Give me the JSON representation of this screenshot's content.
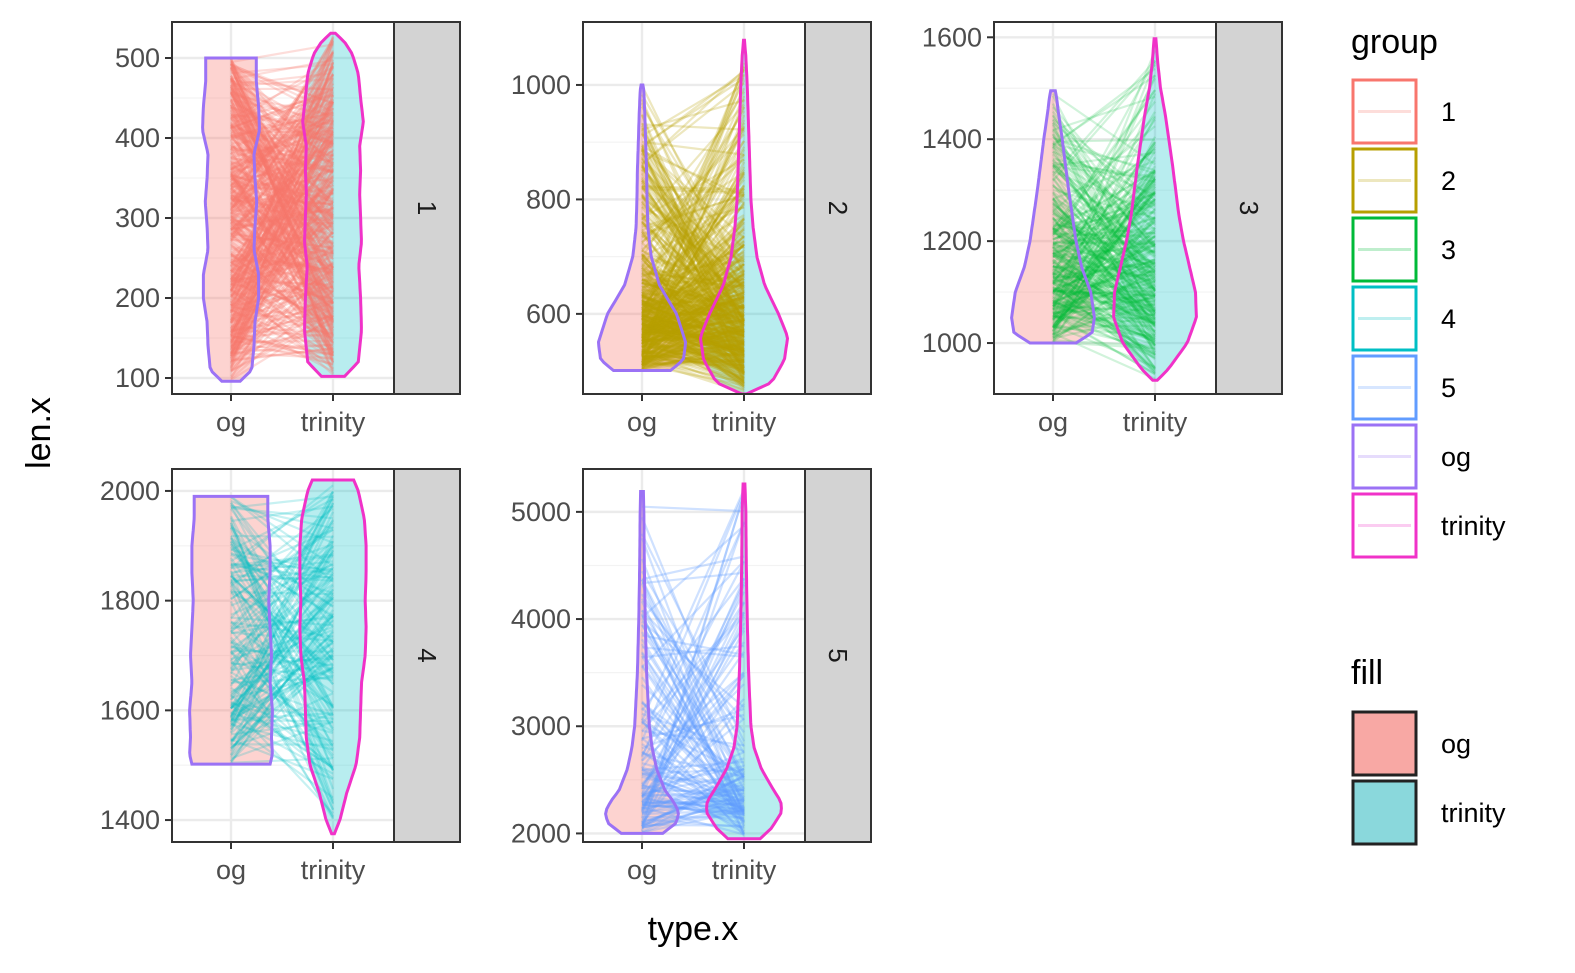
{
  "chart_data": {
    "type": "violin",
    "xlabel": "type.x",
    "ylabel": "len.x",
    "x_categories": [
      "og",
      "trinity"
    ],
    "panels": [
      {
        "facet": "1",
        "ylim": [
          80,
          545
        ],
        "yticks": [
          100,
          200,
          300,
          400,
          500
        ],
        "line_color": "#F8766D",
        "line_count": 500,
        "line_opacity": 0.25,
        "og": {
          "min": 96,
          "max": 500,
          "density": [
            [
              96,
              0.2
            ],
            [
              110,
              0.45
            ],
            [
              140,
              0.5
            ],
            [
              170,
              0.52
            ],
            [
              200,
              0.6
            ],
            [
              230,
              0.6
            ],
            [
              260,
              0.5
            ],
            [
              290,
              0.52
            ],
            [
              320,
              0.56
            ],
            [
              350,
              0.52
            ],
            [
              380,
              0.5
            ],
            [
              410,
              0.62
            ],
            [
              440,
              0.6
            ],
            [
              470,
              0.55
            ],
            [
              490,
              0.55
            ],
            [
              500,
              0.55
            ]
          ]
        },
        "trinity": {
          "min": 102,
          "max": 531,
          "density": [
            [
              102,
              0.25
            ],
            [
              120,
              0.55
            ],
            [
              160,
              0.62
            ],
            [
              200,
              0.6
            ],
            [
              240,
              0.56
            ],
            [
              270,
              0.62
            ],
            [
              300,
              0.6
            ],
            [
              330,
              0.58
            ],
            [
              360,
              0.6
            ],
            [
              390,
              0.58
            ],
            [
              420,
              0.66
            ],
            [
              450,
              0.6
            ],
            [
              480,
              0.55
            ],
            [
              505,
              0.42
            ],
            [
              520,
              0.25
            ],
            [
              531,
              0.05
            ]
          ]
        }
      },
      {
        "facet": "2",
        "ylim": [
          460,
          1110
        ],
        "yticks": [
          600,
          800,
          1000
        ],
        "line_color": "#B79F00",
        "line_count": 500,
        "line_opacity": 0.25,
        "og": {
          "min": 501,
          "max": 1000,
          "density": [
            [
              501,
              0.62
            ],
            [
              520,
              0.9
            ],
            [
              550,
              0.95
            ],
            [
              600,
              0.75
            ],
            [
              650,
              0.38
            ],
            [
              700,
              0.2
            ],
            [
              750,
              0.13
            ],
            [
              800,
              0.11
            ],
            [
              850,
              0.1
            ],
            [
              900,
              0.08
            ],
            [
              950,
              0.06
            ],
            [
              990,
              0.04
            ],
            [
              1000,
              0.02
            ]
          ]
        },
        "trinity": {
          "min": 460,
          "max": 1078,
          "density": [
            [
              460,
              0.05
            ],
            [
              480,
              0.6
            ],
            [
              520,
              0.88
            ],
            [
              560,
              0.95
            ],
            [
              600,
              0.75
            ],
            [
              650,
              0.45
            ],
            [
              700,
              0.28
            ],
            [
              750,
              0.2
            ],
            [
              800,
              0.15
            ],
            [
              850,
              0.13
            ],
            [
              900,
              0.11
            ],
            [
              950,
              0.09
            ],
            [
              1000,
              0.07
            ],
            [
              1050,
              0.04
            ],
            [
              1078,
              0.01
            ]
          ]
        }
      },
      {
        "facet": "3",
        "ylim": [
          900,
          1630
        ],
        "yticks": [
          1000,
          1200,
          1400,
          1600
        ],
        "line_color": "#00BA38",
        "line_count": 300,
        "line_opacity": 0.18,
        "og": {
          "min": 1000,
          "max": 1495,
          "density": [
            [
              1000,
              0.5
            ],
            [
              1020,
              0.85
            ],
            [
              1050,
              0.9
            ],
            [
              1100,
              0.82
            ],
            [
              1150,
              0.62
            ],
            [
              1200,
              0.5
            ],
            [
              1250,
              0.42
            ],
            [
              1300,
              0.34
            ],
            [
              1350,
              0.27
            ],
            [
              1400,
              0.2
            ],
            [
              1450,
              0.12
            ],
            [
              1480,
              0.08
            ],
            [
              1495,
              0.05
            ]
          ]
        },
        "trinity": {
          "min": 927,
          "max": 1597,
          "density": [
            [
              927,
              0.05
            ],
            [
              950,
              0.3
            ],
            [
              1000,
              0.7
            ],
            [
              1050,
              0.9
            ],
            [
              1100,
              0.88
            ],
            [
              1150,
              0.75
            ],
            [
              1200,
              0.62
            ],
            [
              1250,
              0.52
            ],
            [
              1300,
              0.45
            ],
            [
              1350,
              0.38
            ],
            [
              1400,
              0.3
            ],
            [
              1450,
              0.22
            ],
            [
              1500,
              0.12
            ],
            [
              1550,
              0.06
            ],
            [
              1597,
              0.02
            ]
          ]
        }
      },
      {
        "facet": "4",
        "ylim": [
          1360,
          2040
        ],
        "yticks": [
          1400,
          1600,
          1800,
          2000
        ],
        "line_color": "#00BFC4",
        "line_count": 180,
        "line_opacity": 0.22,
        "og": {
          "min": 1502,
          "max": 1990,
          "density": [
            [
              1502,
              0.85
            ],
            [
              1520,
              0.9
            ],
            [
              1550,
              0.88
            ],
            [
              1600,
              0.9
            ],
            [
              1650,
              0.85
            ],
            [
              1700,
              0.88
            ],
            [
              1750,
              0.85
            ],
            [
              1800,
              0.82
            ],
            [
              1850,
              0.85
            ],
            [
              1900,
              0.85
            ],
            [
              1950,
              0.8
            ],
            [
              1990,
              0.8
            ]
          ]
        },
        "trinity": {
          "min": 1375,
          "max": 2020,
          "density": [
            [
              1375,
              0.03
            ],
            [
              1400,
              0.15
            ],
            [
              1450,
              0.3
            ],
            [
              1500,
              0.5
            ],
            [
              1550,
              0.58
            ],
            [
              1600,
              0.6
            ],
            [
              1650,
              0.62
            ],
            [
              1700,
              0.7
            ],
            [
              1750,
              0.72
            ],
            [
              1800,
              0.7
            ],
            [
              1850,
              0.72
            ],
            [
              1900,
              0.72
            ],
            [
              1950,
              0.68
            ],
            [
              2000,
              0.55
            ],
            [
              2020,
              0.45
            ]
          ]
        }
      },
      {
        "facet": "5",
        "ylim": [
          1920,
          5400
        ],
        "yticks": [
          2000,
          3000,
          4000,
          5000
        ],
        "line_color": "#619CFF",
        "line_count": 140,
        "line_opacity": 0.3,
        "og": {
          "min": 2000,
          "max": 5190,
          "density": [
            [
              2000,
              0.45
            ],
            [
              2100,
              0.75
            ],
            [
              2200,
              0.8
            ],
            [
              2300,
              0.68
            ],
            [
              2400,
              0.5
            ],
            [
              2600,
              0.32
            ],
            [
              2800,
              0.22
            ],
            [
              3000,
              0.16
            ],
            [
              3500,
              0.1
            ],
            [
              4000,
              0.07
            ],
            [
              4500,
              0.05
            ],
            [
              5000,
              0.04
            ],
            [
              5190,
              0.03
            ]
          ]
        },
        "trinity": {
          "min": 1950,
          "max": 5260,
          "density": [
            [
              1950,
              0.35
            ],
            [
              2050,
              0.6
            ],
            [
              2200,
              0.82
            ],
            [
              2300,
              0.8
            ],
            [
              2400,
              0.65
            ],
            [
              2600,
              0.38
            ],
            [
              2800,
              0.22
            ],
            [
              3000,
              0.15
            ],
            [
              3500,
              0.1
            ],
            [
              4000,
              0.07
            ],
            [
              4500,
              0.05
            ],
            [
              5000,
              0.04
            ],
            [
              5260,
              0.02
            ]
          ]
        }
      }
    ],
    "legend": {
      "group": {
        "title": "group",
        "items": [
          {
            "label": "1",
            "color": "#F8766D"
          },
          {
            "label": "2",
            "color": "#B79F00"
          },
          {
            "label": "3",
            "color": "#00BA38"
          },
          {
            "label": "4",
            "color": "#00BFC4"
          },
          {
            "label": "5",
            "color": "#619CFF"
          },
          {
            "label": "og",
            "color": "#9B72F5"
          },
          {
            "label": "trinity",
            "color": "#F032C8"
          }
        ]
      },
      "fill": {
        "title": "fill",
        "items": [
          {
            "label": "og",
            "color": "#F8A8A4"
          },
          {
            "label": "trinity",
            "color": "#8AD8DC"
          }
        ]
      },
      "placement": "right"
    },
    "colors": {
      "og_fill": "#F8766D",
      "trinity_fill": "#00BFC4",
      "og_outline": "#9B72F5",
      "trinity_outline": "#F032C8",
      "strip_bg": "#D3D3D3",
      "grid": "#EBEBEB"
    },
    "grid": true
  }
}
